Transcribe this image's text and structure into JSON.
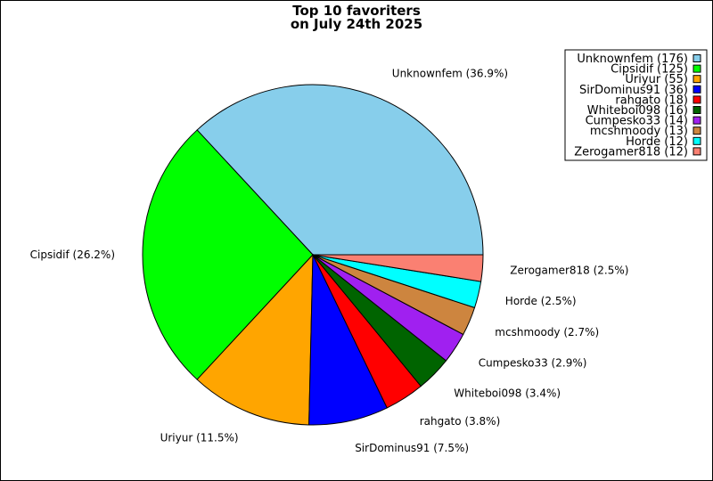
{
  "chart_data": {
    "type": "pie",
    "title_lines": [
      "Top 10 favoriters",
      "on July 24th 2025"
    ],
    "legend_position": "top-right",
    "start_angle_note": "slices start at 3 o'clock and proceed counter-clockwise",
    "slices": [
      {
        "name": "Unknownfem",
        "value": 176,
        "percent": "36.9%",
        "color": "#87CEEB",
        "legend": "Unknownfem (176)",
        "label": "Unknownfem (36.9%)"
      },
      {
        "name": "Cipsidif",
        "value": 125,
        "percent": "26.2%",
        "color": "#00FF00",
        "legend": "Cipsidif (125)",
        "label": "Cipsidif (26.2%)"
      },
      {
        "name": "Uriyur",
        "value": 55,
        "percent": "11.5%",
        "color": "#FFA500",
        "legend": "Uriyur (55)",
        "label": "Uriyur (11.5%)"
      },
      {
        "name": "SirDominus91",
        "value": 36,
        "percent": "7.5%",
        "color": "#0000FF",
        "legend": "SirDominus91 (36)",
        "label": "SirDominus91 (7.5%)"
      },
      {
        "name": "rahgato",
        "value": 18,
        "percent": "3.8%",
        "color": "#FF0000",
        "legend": "rahgato (18)",
        "label": "rahgato (3.8%)"
      },
      {
        "name": "Whiteboi098",
        "value": 16,
        "percent": "3.4%",
        "color": "#006400",
        "legend": "Whiteboi098 (16)",
        "label": "Whiteboi098 (3.4%)"
      },
      {
        "name": "Cumpesko33",
        "value": 14,
        "percent": "2.9%",
        "color": "#A020F0",
        "legend": "Cumpesko33 (14)",
        "label": "Cumpesko33 (2.9%)"
      },
      {
        "name": "mcshmoody",
        "value": 13,
        "percent": "2.7%",
        "color": "#CD853F",
        "legend": "mcshmoody (13)",
        "label": "mcshmoody (2.7%)"
      },
      {
        "name": "Horde",
        "value": 12,
        "percent": "2.5%",
        "color": "#00FFFF",
        "legend": "Horde (12)",
        "label": "Horde (2.5%)"
      },
      {
        "name": "Zerogamer818",
        "value": 12,
        "percent": "2.5%",
        "color": "#FA8072",
        "legend": "Zerogamer818 (12)",
        "label": "Zerogamer818 (2.5%)"
      }
    ]
  }
}
